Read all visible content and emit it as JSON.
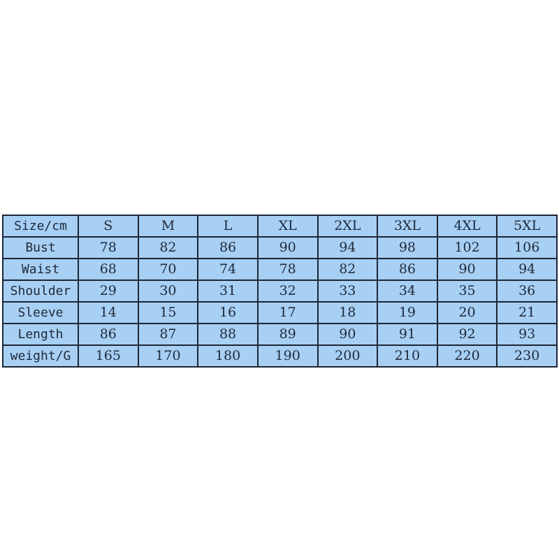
{
  "table": {
    "header": [
      "Size/cm",
      "S",
      "M",
      "L",
      "XL",
      "2XL",
      "3XL",
      "4XL",
      "5XL"
    ],
    "rows": [
      [
        "Bust",
        "78",
        "82",
        "86",
        "90",
        "94",
        "98",
        "102",
        "106"
      ],
      [
        "Waist",
        "68",
        "70",
        "74",
        "78",
        "82",
        "86",
        "90",
        "94"
      ],
      [
        "Shoulder",
        "29",
        "30",
        "31",
        "32",
        "33",
        "34",
        "35",
        "36"
      ],
      [
        "Sleeve",
        "14",
        "15",
        "16",
        "17",
        "18",
        "19",
        "20",
        "21"
      ],
      [
        "Length",
        "86",
        "87",
        "88",
        "89",
        "90",
        "91",
        "92",
        "93"
      ],
      [
        "weight/G",
        "165",
        "170",
        "180",
        "190",
        "200",
        "210",
        "220",
        "230"
      ]
    ]
  },
  "colors": {
    "cell_background": "#a8cff4",
    "border": "#1d2633",
    "text": "#1e2a3a"
  }
}
